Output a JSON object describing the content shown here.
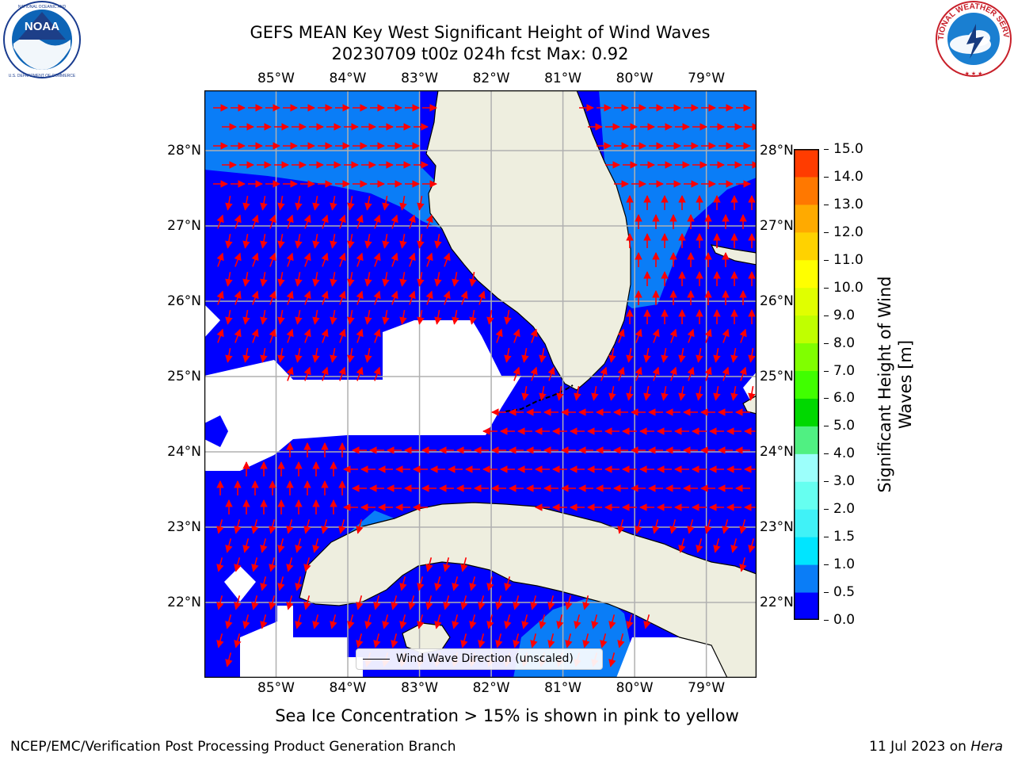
{
  "title": {
    "line1": "GEFS MEAN Key West Significant Height of Wind Waves",
    "line2": "20230709 t00z 024h fcst   Max: 0.92"
  },
  "logos": {
    "left": {
      "name": "noaa-logo",
      "text": "NOAA",
      "ring_text": "NATIONAL OCEANIC AND ATMOSPHERIC ADMINISTRATION · U.S. DEPARTMENT OF COMMERCE"
    },
    "right": {
      "name": "national-weather-service-logo",
      "ring_text": "NATIONAL WEATHER SERVICE"
    }
  },
  "map": {
    "lon_range": [
      -86.0,
      -78.3
    ],
    "lat_range": [
      21.0,
      28.8
    ],
    "x_ticks": [
      "85°W",
      "84°W",
      "83°W",
      "82°W",
      "81°W",
      "80°W",
      "79°W"
    ],
    "x_tick_values": [
      -85,
      -84,
      -83,
      -82,
      -81,
      -80,
      -79
    ],
    "y_ticks": [
      "22°N",
      "23°N",
      "24°N",
      "25°N",
      "26°N",
      "27°N",
      "28°N"
    ],
    "y_tick_values": [
      22,
      23,
      24,
      25,
      26,
      27,
      28
    ],
    "gridlines": true,
    "colors": {
      "wave_0_0.5": "#0000ff",
      "wave_0.5_1.0": "#0a7df7",
      "land": "#eeeedf",
      "coastline": "#000000",
      "arrow": "#ff0000",
      "grid": "#b0b0b0",
      "no_data": "#ffffff"
    },
    "arrow_style": "short red arrows for wind wave direction"
  },
  "colorbar": {
    "label": "Significant Height of Wind Waves [m]",
    "ticks": [
      "0.0",
      "0.5",
      "1.0",
      "1.5",
      "2.0",
      "3.0",
      "4.0",
      "5.0",
      "6.0",
      "7.0",
      "8.0",
      "9.0",
      "10.0",
      "11.0",
      "12.0",
      "13.0",
      "14.0",
      "15.0"
    ],
    "colors": [
      "#0000ff",
      "#0a7df7",
      "#00e5ff",
      "#40f2f7",
      "#66fff0",
      "#9cfffb",
      "#50f082",
      "#00d800",
      "#40ff00",
      "#80ff00",
      "#c0ff00",
      "#e0ff00",
      "#ffff00",
      "#ffd200",
      "#ffaa00",
      "#ff7800",
      "#ff3c00",
      "#ff0000"
    ]
  },
  "legend": {
    "label": "Wind Wave Direction (unscaled)"
  },
  "note": "Sea Ice Concentration > 15% is shown in pink to yellow",
  "credit_left": "NCEP/EMC/Verification Post Processing Product Generation Branch",
  "credit_date": "11 Jul 2023 on ",
  "credit_machine": "Hera"
}
